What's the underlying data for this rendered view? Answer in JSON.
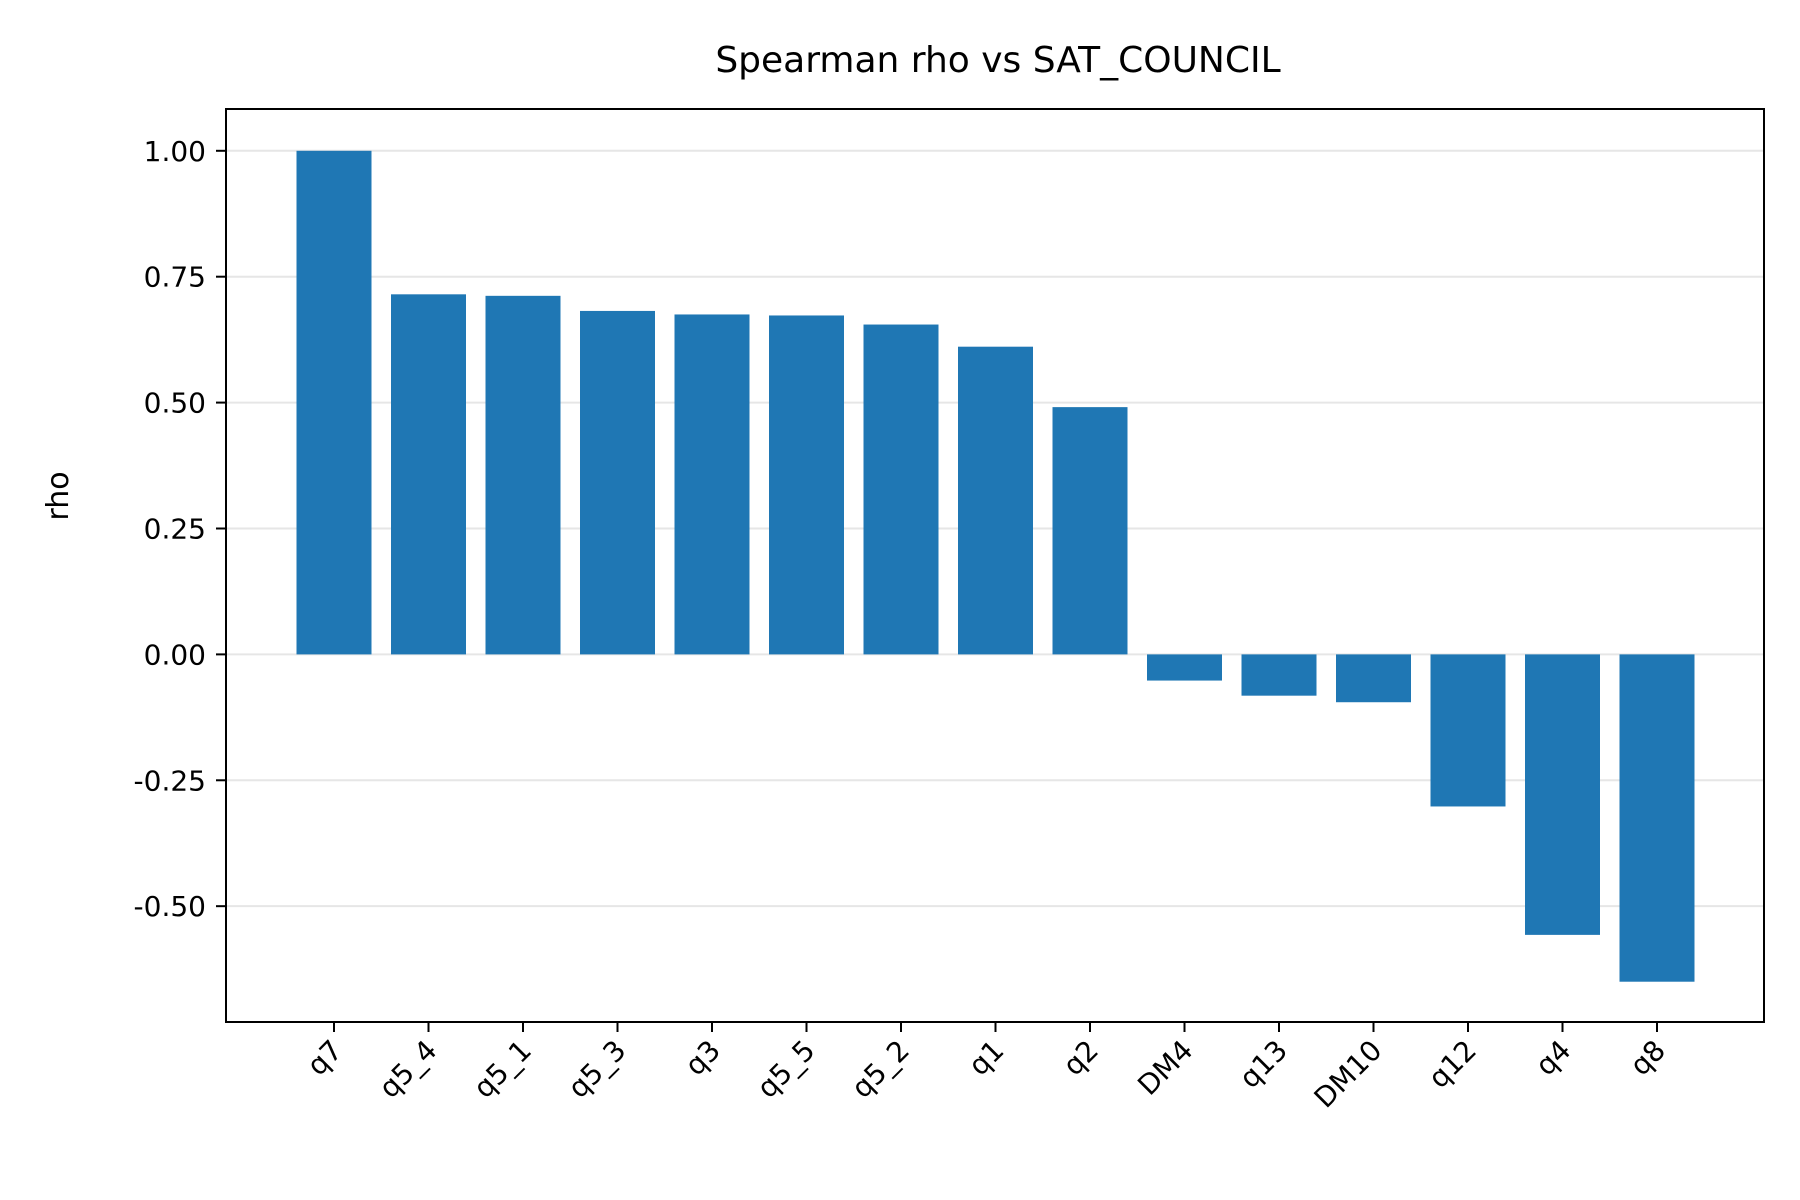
{
  "chart_data": {
    "type": "bar",
    "title": "Spearman rho vs SAT_COUNCIL",
    "xlabel": "",
    "ylabel": "rho",
    "categories": [
      "q7",
      "q5_4",
      "q5_1",
      "q5_3",
      "q3",
      "q5_5",
      "q5_2",
      "q1",
      "q2",
      "DM4",
      "q13",
      "DM10",
      "q12",
      "q4",
      "q8"
    ],
    "values": [
      1.0,
      0.715,
      0.712,
      0.682,
      0.675,
      0.673,
      0.655,
      0.611,
      0.491,
      -0.052,
      -0.082,
      -0.095,
      -0.302,
      -0.557,
      -0.65
    ],
    "ylim": [
      -0.73,
      1.083
    ],
    "yticks": [
      -0.5,
      -0.25,
      0.0,
      0.25,
      0.5,
      0.75,
      1.0
    ],
    "ytick_labels": [
      "-0.50",
      "-0.25",
      "0.00",
      "0.25",
      "0.50",
      "0.75",
      "1.00"
    ],
    "grid": "horizontal",
    "bar_color": "#1f77b4",
    "grid_color": "#e6e6e6"
  }
}
